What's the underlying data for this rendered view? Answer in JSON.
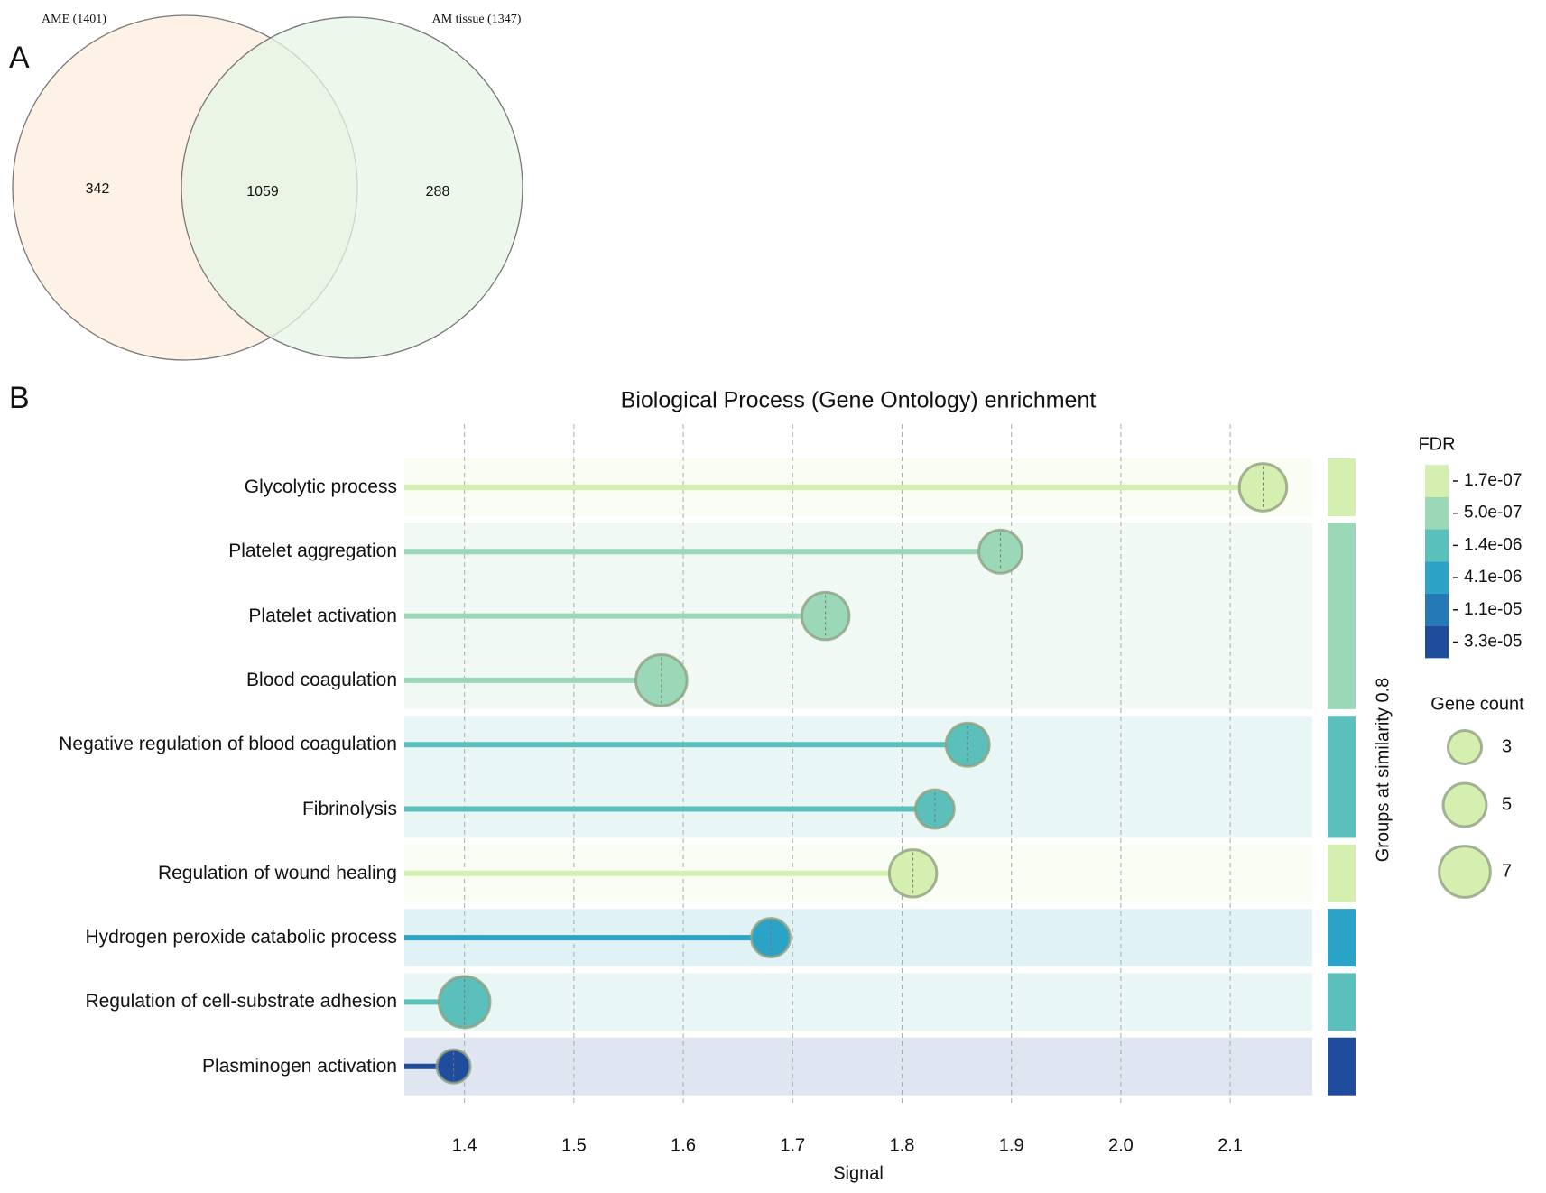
{
  "chart_data": [
    {
      "type": "venn",
      "panel_label": "A",
      "sets": [
        {
          "name": "AME (1401)",
          "color": "#fdeedd"
        },
        {
          "name": "AM tissue (1347)",
          "color": "#e4f5e4"
        }
      ],
      "categories": [
        "AME only",
        "Both",
        "AM tissue only"
      ],
      "values": [
        342,
        1059,
        288
      ]
    },
    {
      "type": "lollipop",
      "panel_label": "B",
      "title": "Biological Process (Gene Ontology) enrichment",
      "xlabel": "Signal",
      "categories": [
        "Glycolytic process",
        "Platelet aggregation",
        "Platelet activation",
        "Blood coagulation",
        "Negative regulation of blood coagulation",
        "Fibrinolysis",
        "Regulation of wound healing",
        "Hydrogen peroxide catabolic process",
        "Regulation of cell-substrate adhesion",
        "Plasminogen activation"
      ],
      "values": [
        2.13,
        1.89,
        1.73,
        1.58,
        1.86,
        1.83,
        1.81,
        1.68,
        1.4,
        1.39
      ],
      "gene_counts": [
        6,
        5,
        6,
        7,
        5,
        4,
        6,
        4,
        7,
        3
      ],
      "fdr": [
        1.7e-07,
        5e-07,
        5e-07,
        5e-07,
        1.4e-06,
        1.4e-06,
        1.7e-07,
        4.1e-06,
        1.4e-06,
        3.3e-05
      ],
      "groups": [
        1,
        3,
        2,
        1,
        1,
        1,
        1
      ],
      "groups_label": "Groups at similarity 0.8",
      "xlim": [
        1.345,
        2.175
      ],
      "xticks": [
        1.4,
        1.5,
        1.6,
        1.7,
        1.8,
        1.9,
        {
          "value": 2.0,
          "label": "2.0"
        },
        2.1
      ],
      "grid": true,
      "fdr_title": "FDR",
      "fdr_ticks": [
        {
          "value": 1.7e-07,
          "label": "1.7e-07"
        },
        {
          "value": 5e-07,
          "label": "5.0e-07"
        },
        {
          "value": 1.4e-06,
          "label": "1.4e-06"
        },
        {
          "value": 4.1e-06,
          "label": "4.1e-06"
        },
        {
          "value": 1.1e-05,
          "label": "1.1e-05"
        },
        {
          "value": 3.3e-05,
          "label": "3.3e-05"
        }
      ],
      "fdr_colors": [
        "#d5efb1",
        "#9bd8b8",
        "#5bbfbb",
        "#2ba3c6",
        "#2479b6",
        "#1f4c9c"
      ],
      "size_title": "Gene count",
      "size_legend": [
        3,
        5,
        7
      ]
    }
  ]
}
